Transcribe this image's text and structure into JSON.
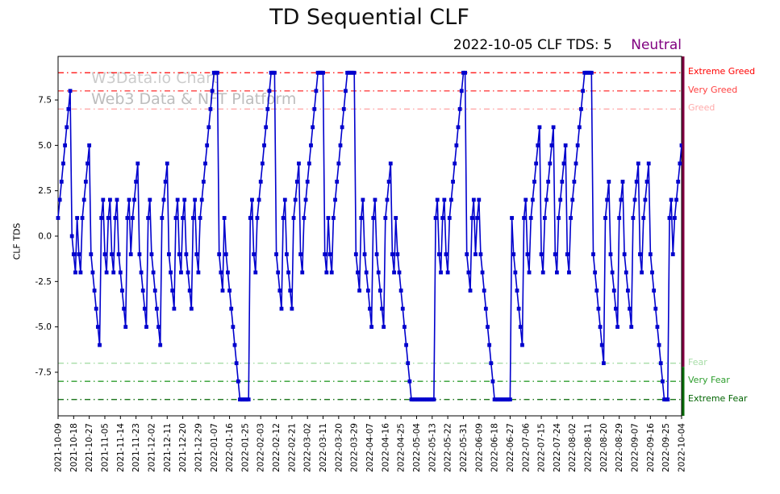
{
  "title": "TD Sequential CLF",
  "subtitle": {
    "text": "2022-10-05 CLF TDS: 5",
    "status": "Neutral",
    "status_color": "#800080"
  },
  "watermark": {
    "line1": "W3Data.io Chart",
    "line2": "Web3 Data & NFT Platform"
  },
  "chart_data": {
    "type": "line",
    "title": "TD Sequential CLF",
    "ylabel": "CLF TDS",
    "ylim": [
      -9.9,
      9.9
    ],
    "y_ticks": [
      7.5,
      5.0,
      2.5,
      0.0,
      -2.5,
      -5.0,
      -7.5
    ],
    "start_date": "2021-10-09",
    "end_date": "2022-10-04",
    "x_tick_interval_days": 9,
    "x_tick_labels": [
      "2021-10-09",
      "2021-10-18",
      "2021-10-27",
      "2021-11-05",
      "2021-11-14",
      "2021-11-23",
      "2021-12-02",
      "2021-12-11",
      "2021-12-20",
      "2021-12-29",
      "2022-01-07",
      "2022-01-16",
      "2022-01-25",
      "2022-02-03",
      "2022-02-12",
      "2022-02-21",
      "2022-03-02",
      "2022-03-11",
      "2022-03-20",
      "2022-03-29",
      "2022-04-07",
      "2022-04-16",
      "2022-04-25",
      "2022-05-04",
      "2022-05-13",
      "2022-05-22",
      "2022-05-31",
      "2022-06-09",
      "2022-06-18",
      "2022-06-27",
      "2022-07-06",
      "2022-07-15",
      "2022-07-24",
      "2022-08-02",
      "2022-08-11",
      "2022-08-20",
      "2022-08-29",
      "2022-09-07",
      "2022-09-16",
      "2022-09-25",
      "2022-10-04"
    ],
    "line_color": "#0000cd",
    "marker": "square",
    "grid": false,
    "legend": "none",
    "thresholds": [
      {
        "value": 9,
        "label": "Extreme Greed",
        "color": "#ff0000"
      },
      {
        "value": 8,
        "label": "Very Greed",
        "color": "#ff4040"
      },
      {
        "value": 7,
        "label": "Greed",
        "color": "#ffaaaa"
      },
      {
        "value": -7,
        "label": "Fear",
        "color": "#a6dca6"
      },
      {
        "value": -8,
        "label": "Very Fear",
        "color": "#2e9e2e"
      },
      {
        "value": -9,
        "label": "Extreme Fear",
        "color": "#006400"
      }
    ],
    "latest_line": {
      "top_color": "#800040",
      "bottom_color": "#0a6b0a",
      "split_value": -7.2
    },
    "values": [
      1,
      2,
      3,
      4,
      5,
      6,
      7,
      8,
      0,
      -1,
      -2,
      1,
      -1,
      -2,
      1,
      2,
      3,
      4,
      5,
      -1,
      -2,
      -3,
      -4,
      -5,
      -6,
      1,
      2,
      -1,
      -2,
      1,
      2,
      -1,
      -2,
      1,
      2,
      -1,
      -2,
      -3,
      -4,
      -5,
      1,
      2,
      -1,
      1,
      2,
      3,
      4,
      -1,
      -2,
      -3,
      -4,
      -5,
      1,
      2,
      -1,
      -2,
      -3,
      -4,
      -5,
      -6,
      1,
      2,
      3,
      4,
      -1,
      -2,
      -3,
      -4,
      1,
      2,
      -1,
      -2,
      1,
      2,
      -1,
      -2,
      -3,
      -4,
      1,
      2,
      -1,
      -2,
      1,
      2,
      3,
      4,
      5,
      6,
      7,
      8,
      9,
      9,
      9,
      -1,
      -2,
      -3,
      1,
      -1,
      -2,
      -3,
      -4,
      -5,
      -6,
      -7,
      -8,
      -9,
      -9,
      -9,
      -9,
      -9,
      -9,
      1,
      2,
      -1,
      -2,
      1,
      2,
      3,
      4,
      5,
      6,
      7,
      8,
      9,
      9,
      9,
      -1,
      -2,
      -3,
      -4,
      1,
      2,
      -1,
      -2,
      -3,
      -4,
      1,
      2,
      3,
      4,
      -1,
      -2,
      1,
      2,
      3,
      4,
      5,
      6,
      7,
      8,
      9,
      9,
      9,
      9,
      -1,
      -2,
      1,
      -1,
      -2,
      1,
      2,
      3,
      4,
      5,
      6,
      7,
      8,
      9,
      9,
      9,
      9,
      9,
      -1,
      -2,
      -3,
      1,
      2,
      -1,
      -2,
      -3,
      -4,
      -5,
      1,
      2,
      -1,
      -2,
      -3,
      -4,
      -5,
      1,
      2,
      3,
      4,
      -1,
      -2,
      1,
      -1,
      -2,
      -3,
      -4,
      -5,
      -6,
      -7,
      -8,
      -9,
      -9,
      -9,
      -9,
      -9,
      -9,
      -9,
      -9,
      -9,
      -9,
      -9,
      -9,
      -9,
      -9,
      1,
      2,
      -1,
      -2,
      1,
      2,
      -1,
      -2,
      1,
      2,
      3,
      4,
      5,
      6,
      7,
      8,
      9,
      9,
      -1,
      -2,
      -3,
      1,
      2,
      -1,
      1,
      2,
      -1,
      -2,
      -3,
      -4,
      -5,
      -6,
      -7,
      -8,
      -9,
      -9,
      -9,
      -9,
      -9,
      -9,
      -9,
      -9,
      -9,
      -9,
      1,
      -1,
      -2,
      -3,
      -4,
      -5,
      -6,
      1,
      2,
      -1,
      -2,
      1,
      2,
      3,
      4,
      5,
      6,
      -1,
      -2,
      1,
      2,
      3,
      4,
      5,
      6,
      -1,
      -2,
      1,
      2,
      3,
      4,
      5,
      -1,
      -2,
      1,
      2,
      3,
      4,
      5,
      6,
      7,
      8,
      9,
      9,
      9,
      9,
      9,
      -1,
      -2,
      -3,
      -4,
      -5,
      -6,
      -7,
      1,
      2,
      3,
      -1,
      -2,
      -3,
      -4,
      -5,
      1,
      2,
      3,
      -1,
      -2,
      -3,
      -4,
      -5,
      1,
      2,
      3,
      4,
      -1,
      -2,
      1,
      2,
      3,
      4,
      -1,
      -2,
      -3,
      -4,
      -5,
      -6,
      -7,
      -8,
      -9,
      -9,
      -9,
      1,
      2,
      -1,
      1,
      2,
      3,
      4,
      5
    ]
  }
}
